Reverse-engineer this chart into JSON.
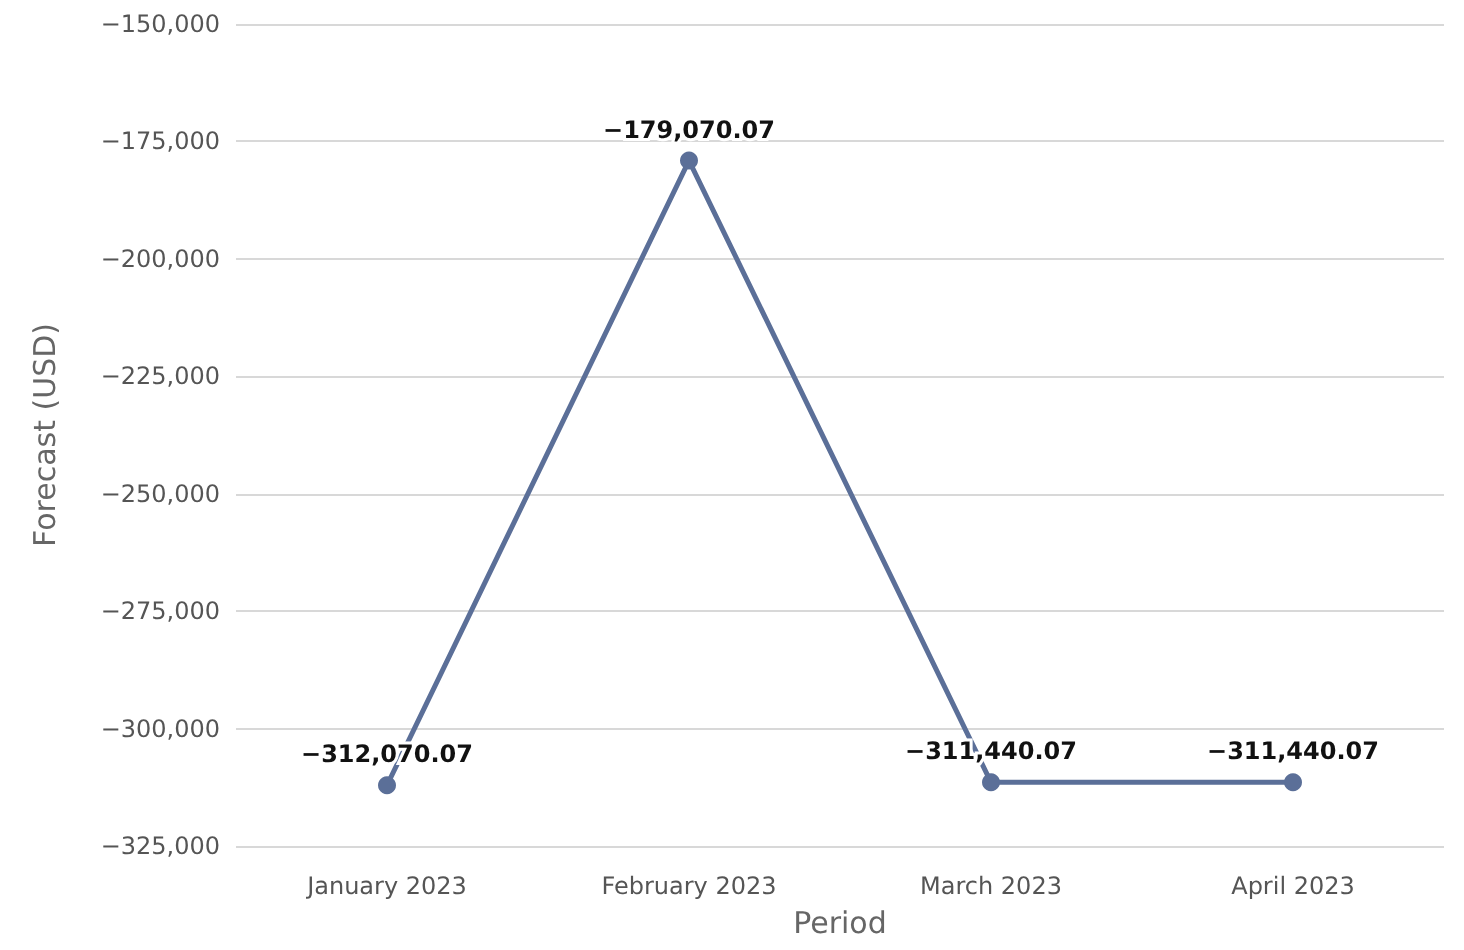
{
  "chart_data": {
    "type": "line",
    "xlabel": "Period",
    "ylabel": "Forecast (USD)",
    "categories": [
      "January 2023",
      "February 2023",
      "March 2023",
      "April 2023"
    ],
    "series": [
      {
        "color": "#5b6f98",
        "values": [
          -312070.07,
          -179070.07,
          -311440.07,
          -311440.07
        ],
        "value_labels": [
          "−312,070.07",
          "−179,070.07",
          "−311,440.07",
          "−311,440.07"
        ]
      }
    ],
    "ylim": [
      -325000,
      -150000
    ],
    "yticks": [
      {
        "value": -325000,
        "label": "−325,000"
      },
      {
        "value": -300000,
        "label": "−300,000"
      },
      {
        "value": -275000,
        "label": "−275,000"
      },
      {
        "value": -250000,
        "label": "−250,000"
      },
      {
        "value": -225000,
        "label": "−225,000"
      },
      {
        "value": -200000,
        "label": "−200,000"
      },
      {
        "value": -175000,
        "label": "−175,000"
      },
      {
        "value": -150000,
        "label": "−150,000"
      }
    ],
    "grid": "y",
    "marker": "circle"
  }
}
